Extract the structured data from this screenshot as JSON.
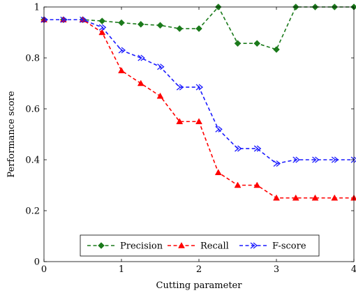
{
  "chart_data": {
    "type": "line",
    "title": "",
    "xlabel": "Cutting parameter",
    "ylabel": "Performance score",
    "xlim": [
      0,
      4
    ],
    "ylim": [
      0,
      1
    ],
    "x_ticks": [
      0,
      1,
      2,
      3,
      4
    ],
    "y_ticks": [
      0,
      0.2,
      0.4,
      0.6,
      0.8,
      1
    ],
    "x_tick_labels": [
      "0",
      "1",
      "2",
      "3",
      "4"
    ],
    "y_tick_labels": [
      "0",
      "0.2",
      "0.4",
      "0.6",
      "0.8",
      "1"
    ],
    "grid": false,
    "legend_position": "bottom-center",
    "x": [
      0,
      0.25,
      0.5,
      0.75,
      1,
      1.25,
      1.5,
      1.75,
      2,
      2.25,
      2.5,
      2.75,
      3,
      3.25,
      3.5,
      3.75,
      4
    ],
    "series": [
      {
        "name": "Precision",
        "color": "#1b7a1b",
        "marker": "diamond",
        "values": [
          0.95,
          0.95,
          0.95,
          0.945,
          0.938,
          0.932,
          0.928,
          0.915,
          0.915,
          1.0,
          0.857,
          0.857,
          0.833,
          1.0,
          1.0,
          1.0,
          1.0
        ]
      },
      {
        "name": "Recall",
        "color": "#ff0000",
        "marker": "triangle",
        "values": [
          0.95,
          0.95,
          0.95,
          0.9,
          0.75,
          0.7,
          0.65,
          0.55,
          0.55,
          0.35,
          0.3,
          0.3,
          0.25,
          0.25,
          0.25,
          0.25,
          0.25
        ]
      },
      {
        "name": "F-score",
        "color": "#1a1aff",
        "marker": "arrow",
        "values": [
          0.95,
          0.95,
          0.95,
          0.92,
          0.83,
          0.8,
          0.765,
          0.685,
          0.685,
          0.52,
          0.444,
          0.444,
          0.385,
          0.4,
          0.4,
          0.4,
          0.4
        ]
      }
    ]
  }
}
